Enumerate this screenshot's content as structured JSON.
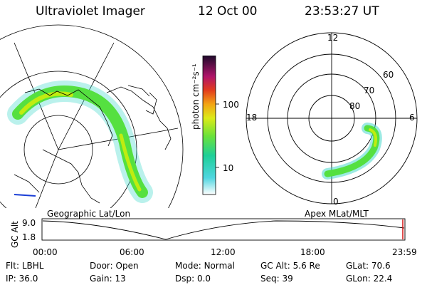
{
  "header": {
    "instrument": "Ultraviolet Imager",
    "date": "12 Oct 00",
    "time": "23:53:27 UT"
  },
  "colorbar": {
    "unit_label": "photon cm⁻²s⁻¹",
    "ticks": [
      "100",
      "10"
    ]
  },
  "polar_plot": {
    "mlt_labels": {
      "top": "12",
      "left": "18",
      "right": "6",
      "bottom": "0"
    },
    "lat_labels": [
      "60",
      "70",
      "80"
    ]
  },
  "map_labels": {
    "left": "Geographic Lat/Lon",
    "right": "Apex MLat/MLT"
  },
  "altitude_plot": {
    "ylabel": "GC Alt",
    "yticks": [
      "9.0",
      "1.8"
    ],
    "xticks": [
      "00:00",
      "06:00",
      "12:00",
      "18:00",
      "23:59"
    ]
  },
  "info": {
    "row1": [
      {
        "label": "Flt:",
        "value": "LBHL"
      },
      {
        "label": "Door:",
        "value": "Open"
      },
      {
        "label": "Mode:",
        "value": "Normal"
      },
      {
        "label": "GC Alt:",
        "value": "5.6 Re"
      },
      {
        "label": "GLat:",
        "value": "70.6"
      }
    ],
    "row2": [
      {
        "label": "IP:",
        "value": "36.0"
      },
      {
        "label": "Gain:",
        "value": "13"
      },
      {
        "label": "Dsp:",
        "value": "0.0"
      },
      {
        "label": "Seq:",
        "value": "39"
      },
      {
        "label": "GLon:",
        "value": "22.4"
      }
    ]
  },
  "colors": {
    "aurora_low": "#3ad6c8",
    "aurora_mid": "#55e040",
    "aurora_high": "#c0ec10"
  }
}
